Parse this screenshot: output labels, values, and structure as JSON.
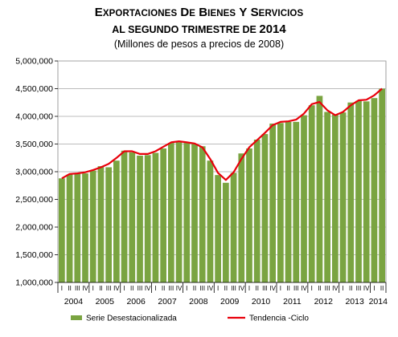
{
  "title_line1": "Exportaciones de Bienes y Servicios",
  "title_line2_prefix": "al segundo trimestre de ",
  "title_line2_year": "2014",
  "subtitle": "(Millones de pesos a precios de 2008)",
  "colors": {
    "bar": "#7aa441",
    "trend": "#e8000b",
    "grid": "#a6a6a6"
  },
  "chart_data": {
    "type": "bar",
    "title": "Exportaciones de Bienes y Servicios al segundo trimestre de 2014",
    "subtitle": "(Millones de pesos a precios de 2008)",
    "ylim": [
      1000000,
      5000000
    ],
    "y_ticks": [
      "1,000,000",
      "1,500,000",
      "2,000,000",
      "2,500,000",
      "3,000,000",
      "3,500,000",
      "4,000,000",
      "4,500,000",
      "5,000,000"
    ],
    "y_tick_values": [
      1000000,
      1500000,
      2000000,
      2500000,
      3000000,
      3500000,
      4000000,
      4500000,
      5000000
    ],
    "years": [
      "2004",
      "2005",
      "2006",
      "2007",
      "2008",
      "2009",
      "2010",
      "2011",
      "2012",
      "2013",
      "2014"
    ],
    "quarter_labels": [
      "I",
      "II",
      "III",
      "IV"
    ],
    "categories": [
      "2004-I",
      "2004-II",
      "2004-III",
      "2004-IV",
      "2005-I",
      "2005-II",
      "2005-III",
      "2005-IV",
      "2006-I",
      "2006-II",
      "2006-III",
      "2006-IV",
      "2007-I",
      "2007-II",
      "2007-III",
      "2007-IV",
      "2008-I",
      "2008-II",
      "2008-III",
      "2008-IV",
      "2009-I",
      "2009-II",
      "2009-III",
      "2009-IV",
      "2010-I",
      "2010-II",
      "2010-III",
      "2010-IV",
      "2011-I",
      "2011-II",
      "2011-III",
      "2011-IV",
      "2012-I",
      "2012-II",
      "2012-III",
      "2012-IV",
      "2013-I",
      "2013-II",
      "2013-III",
      "2013-IV",
      "2014-I",
      "2014-II"
    ],
    "series": [
      {
        "name": "Serie Desestacionalizada",
        "kind": "bar",
        "values": [
          2880000,
          2950000,
          2960000,
          2970000,
          3020000,
          3100000,
          3080000,
          3200000,
          3380000,
          3350000,
          3290000,
          3300000,
          3340000,
          3420000,
          3520000,
          3530000,
          3520000,
          3500000,
          3460000,
          3200000,
          2940000,
          2800000,
          2980000,
          3330000,
          3420000,
          3580000,
          3680000,
          3870000,
          3880000,
          3900000,
          3900000,
          4020000,
          4200000,
          4370000,
          4080000,
          4030000,
          4070000,
          4250000,
          4280000,
          4270000,
          4330000,
          4500000
        ]
      },
      {
        "name": "Tendencia -Ciclo",
        "kind": "line",
        "values": [
          2880000,
          2960000,
          2970000,
          2990000,
          3030000,
          3080000,
          3140000,
          3250000,
          3370000,
          3370000,
          3320000,
          3320000,
          3370000,
          3450000,
          3530000,
          3550000,
          3530000,
          3510000,
          3440000,
          3230000,
          2980000,
          2850000,
          2990000,
          3230000,
          3440000,
          3570000,
          3700000,
          3840000,
          3900000,
          3910000,
          3940000,
          4050000,
          4220000,
          4260000,
          4110000,
          4020000,
          4080000,
          4200000,
          4290000,
          4300000,
          4380000,
          4500000
        ]
      }
    ],
    "grid": true,
    "legend_position": "bottom"
  }
}
